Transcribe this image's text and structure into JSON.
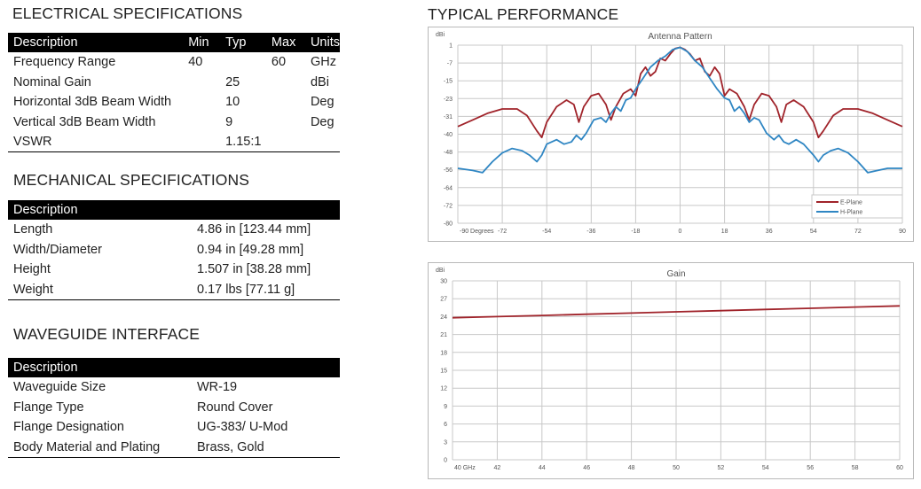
{
  "electrical": {
    "title": "ELECTRICAL SPECIFICATIONS",
    "headers": [
      "Description",
      "Min",
      "Typ",
      "Max",
      "Units"
    ],
    "rows": [
      [
        "Frequency Range",
        "40",
        "",
        "60",
        "GHz"
      ],
      [
        "Nominal Gain",
        "",
        "25",
        "",
        "dBi"
      ],
      [
        "Horizontal 3dB Beam Width",
        "",
        "10",
        "",
        "Deg"
      ],
      [
        "Vertical 3dB Beam Width",
        "",
        "9",
        "",
        "Deg"
      ],
      [
        "VSWR",
        "",
        "1.15:1",
        "",
        ""
      ]
    ]
  },
  "mechanical": {
    "title": "MECHANICAL SPECIFICATIONS",
    "header": "Description",
    "rows": [
      [
        "Length",
        "4.86 in [123.44 mm]"
      ],
      [
        "Width/Diameter",
        "0.94 in [49.28 mm]"
      ],
      [
        "Height",
        "1.507 in [38.28 mm]"
      ],
      [
        "Weight",
        "0.17 lbs [77.11 g]"
      ]
    ]
  },
  "waveguide": {
    "title": "WAVEGUIDE INTERFACE",
    "header": "Description",
    "rows": [
      [
        "Waveguide Size",
        "WR-19"
      ],
      [
        "Flange Type",
        "Round Cover"
      ],
      [
        "Flange Designation",
        "UG-383/ U-Mod"
      ],
      [
        "Body Material and Plating",
        "Brass, Gold"
      ]
    ]
  },
  "performance_title": "TYPICAL PERFORMANCE",
  "chart_data": [
    {
      "type": "line",
      "title": "Antenna Pattern",
      "ylabel": "dBi",
      "xlabel": "",
      "x_tick_labels": [
        "-90 Degrees",
        "-72",
        "-54",
        "-36",
        "-18",
        "0",
        "18",
        "36",
        "54",
        "72",
        "90"
      ],
      "y_tick_labels": [
        "1",
        "-7",
        "-15",
        "-23",
        "-31",
        "-40",
        "-48",
        "-56",
        "-64",
        "-72",
        "-80"
      ],
      "xlim": [
        -90,
        90
      ],
      "ylim": [
        -80,
        1
      ],
      "grid": true,
      "legend_position": "bottom-right",
      "series": [
        {
          "name": "E-Plane",
          "color": "#a0232a",
          "x": [
            -90,
            -84,
            -78,
            -72,
            -66,
            -62,
            -58,
            -56,
            -54,
            -50,
            -46,
            -43,
            -41,
            -39,
            -36,
            -33,
            -30,
            -28,
            -26,
            -23,
            -20,
            -18,
            -16,
            -14,
            -12,
            -10,
            -8,
            -6,
            -4,
            -2,
            0,
            2,
            4,
            6,
            8,
            10,
            12,
            14,
            16,
            18,
            20,
            23,
            26,
            28,
            30,
            33,
            36,
            39,
            41,
            43,
            46,
            50,
            54,
            56,
            58,
            62,
            66,
            72,
            78,
            84,
            90
          ],
          "y": [
            -36,
            -33,
            -30,
            -28,
            -28,
            -31,
            -38,
            -41,
            -34,
            -27,
            -24,
            -26,
            -34,
            -27,
            -22,
            -21,
            -26,
            -33,
            -27,
            -21,
            -19,
            -22,
            -12,
            -9,
            -13,
            -11,
            -5,
            -6,
            -3,
            -0.5,
            0,
            -1,
            -3,
            -6,
            -5,
            -11,
            -13,
            -9,
            -12,
            -22,
            -19,
            -21,
            -27,
            -33,
            -26,
            -21,
            -22,
            -27,
            -34,
            -26,
            -24,
            -27,
            -34,
            -41,
            -38,
            -31,
            -28,
            -28,
            -30,
            -33,
            -36
          ]
        },
        {
          "name": "H-Plane",
          "color": "#2f86c3",
          "x": [
            -90,
            -84,
            -80,
            -76,
            -72,
            -68,
            -64,
            -61,
            -58,
            -56,
            -54,
            -50,
            -47,
            -44,
            -42,
            -40,
            -38,
            -35,
            -32,
            -30,
            -28,
            -26,
            -24,
            -22,
            -20,
            -18,
            -15,
            -12,
            -9,
            -6,
            -3,
            0,
            3,
            6,
            9,
            12,
            15,
            18,
            20,
            22,
            24,
            26,
            28,
            30,
            32,
            35,
            38,
            40,
            42,
            44,
            47,
            50,
            54,
            56,
            58,
            61,
            64,
            68,
            72,
            76,
            80,
            84,
            90
          ],
          "y": [
            -55,
            -56,
            -57,
            -52,
            -48,
            -46,
            -47,
            -49,
            -52,
            -49,
            -44,
            -42,
            -44,
            -43,
            -40,
            -42,
            -39,
            -33,
            -32,
            -34,
            -30,
            -27,
            -29,
            -24,
            -23,
            -19,
            -14,
            -9,
            -6,
            -4,
            -1,
            0,
            -2,
            -6,
            -9,
            -14,
            -19,
            -23,
            -24,
            -29,
            -27,
            -30,
            -34,
            -32,
            -33,
            -39,
            -42,
            -40,
            -43,
            -44,
            -42,
            -44,
            -49,
            -52,
            -49,
            -47,
            -46,
            -48,
            -52,
            -57,
            -56,
            -55,
            -55
          ]
        }
      ]
    },
    {
      "type": "line",
      "title": "Gain",
      "ylabel": "dBi",
      "xlabel": "",
      "x_tick_labels": [
        "40 GHz",
        "42",
        "44",
        "46",
        "48",
        "50",
        "52",
        "54",
        "56",
        "58",
        "60"
      ],
      "y_tick_labels": [
        "30",
        "27",
        "24",
        "21",
        "18",
        "15",
        "12",
        "9",
        "6",
        "3",
        "0"
      ],
      "xlim": [
        40,
        60
      ],
      "ylim": [
        0,
        30
      ],
      "grid": true,
      "series": [
        {
          "color": "#a0232a",
          "x": [
            40,
            42,
            44,
            46,
            48,
            50,
            52,
            54,
            56,
            58,
            60
          ],
          "y": [
            23.8,
            24.0,
            24.2,
            24.4,
            24.6,
            24.8,
            25.0,
            25.2,
            25.4,
            25.6,
            25.8
          ]
        }
      ]
    }
  ]
}
